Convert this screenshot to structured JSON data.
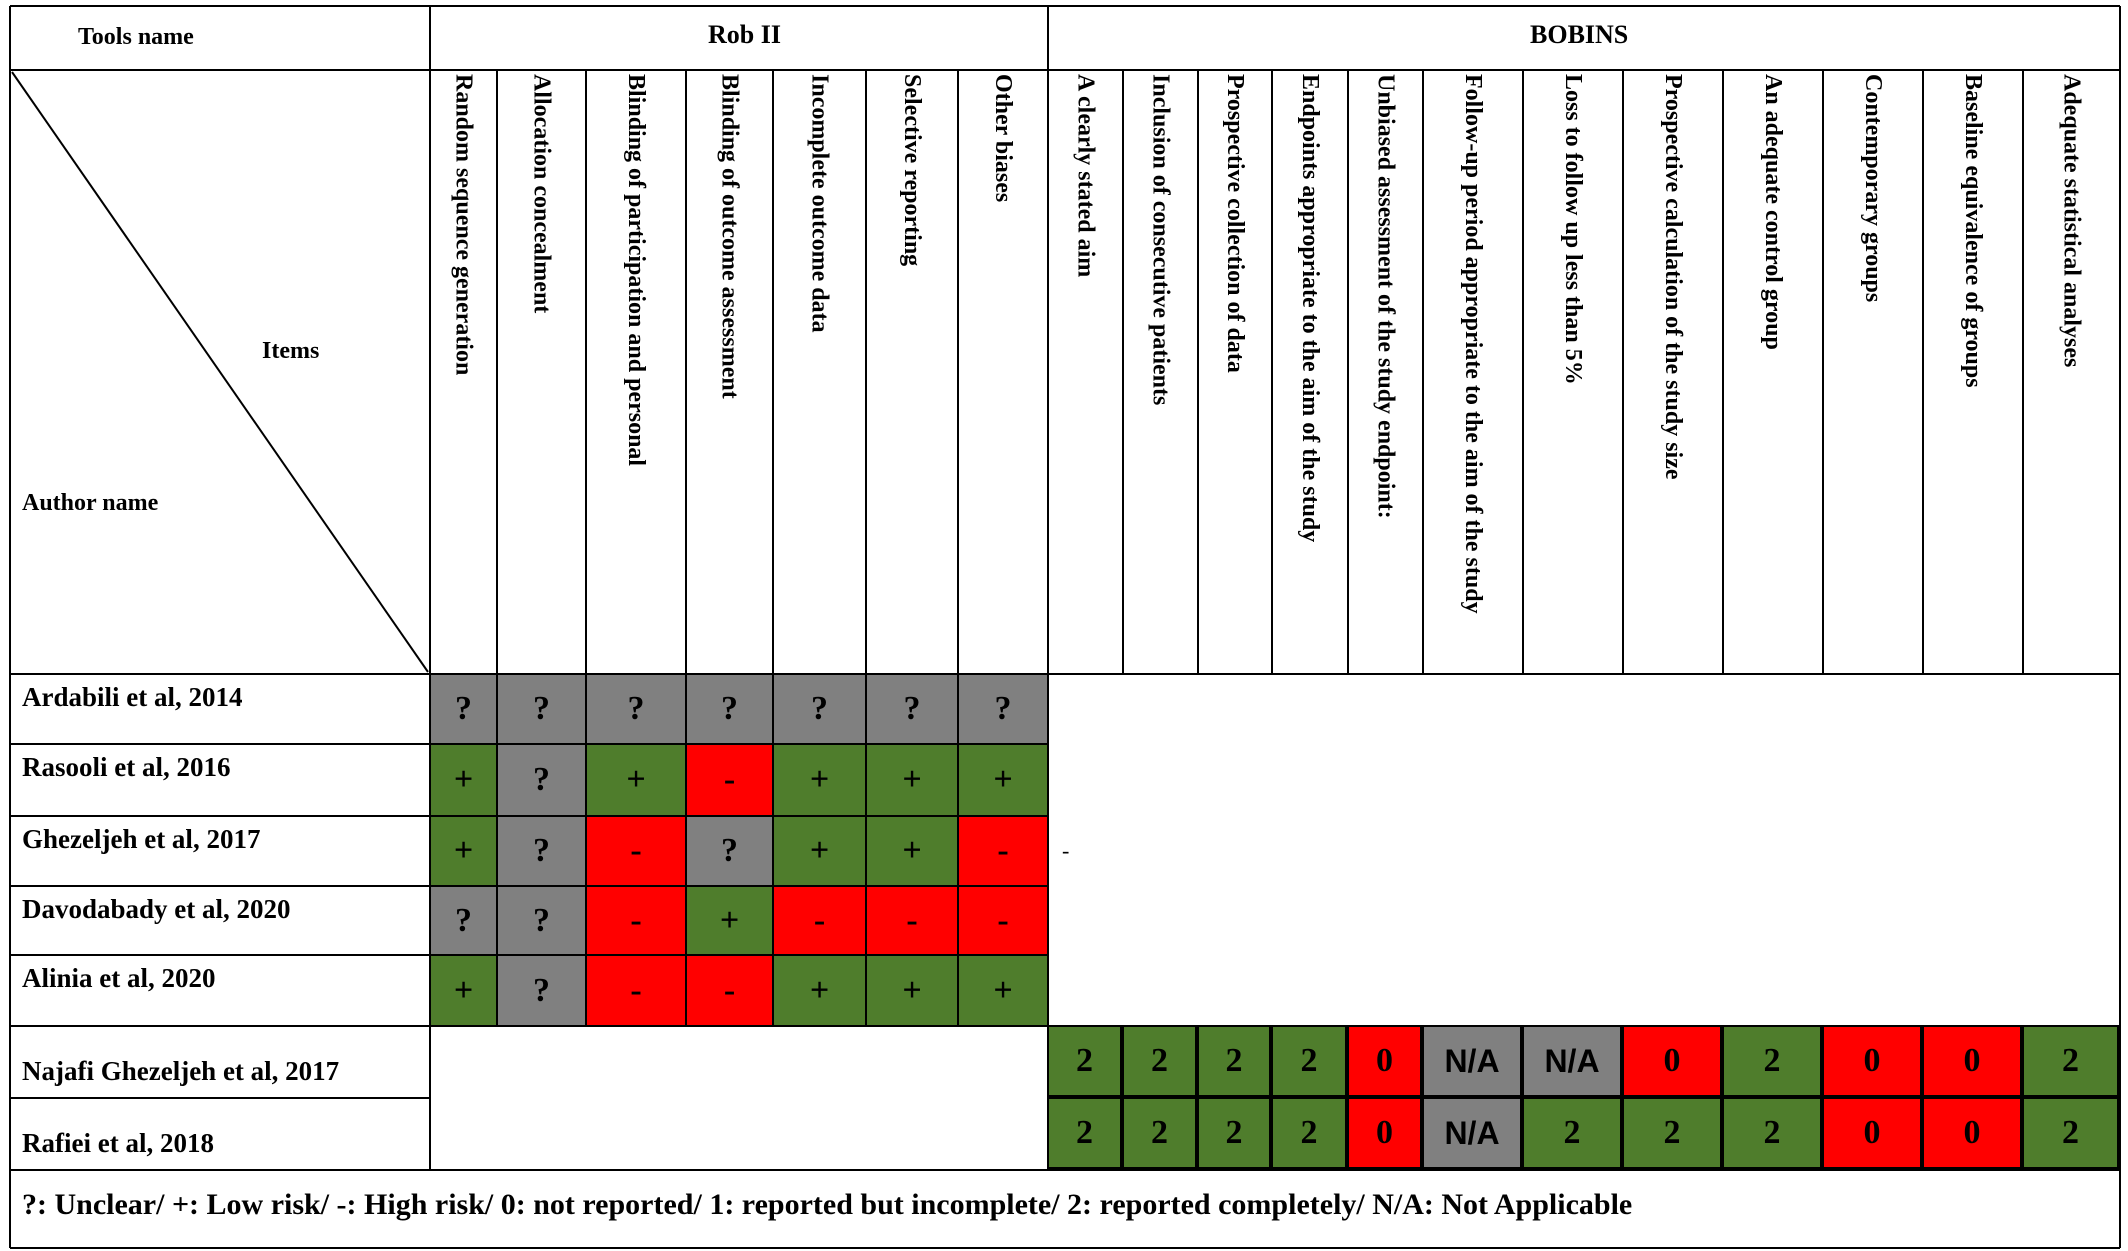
{
  "header": {
    "tools_name": "Tools name",
    "items": "Items",
    "author_name": "Author name",
    "groups": [
      {
        "key": "rob",
        "label": "Rob II"
      },
      {
        "key": "bobins",
        "label": "BOBINS"
      }
    ]
  },
  "columns": [
    "Random sequence generation",
    "Allocation concealment",
    "Blinding of participation and personal",
    "Blinding of outcome assessment",
    "Incomplete outcome data",
    "Selective reporting",
    "Other biases",
    "A clearly stated aim",
    "Inclusion of consecutive patients",
    "Prospective collection of data",
    "Endpoints appropriate to the aim of the study",
    "Unbiased assessment of the study endpoint:",
    "Follow-up period appropriate to the aim of the study",
    "Loss to follow up less than 5%",
    "Prospective calculation of the study size",
    "An adequate control group",
    "Contemporary groups",
    "Baseline equivalence of groups",
    "Adequate statistical analyses"
  ],
  "rob_rows": [
    {
      "author": "Ardabili et al,  2014",
      "cells": [
        "?",
        "?",
        "?",
        "?",
        "?",
        "?",
        "?"
      ]
    },
    {
      "author": "Rasooli et al,  2016",
      "cells": [
        "+",
        "?",
        "+",
        "-",
        "+",
        "+",
        "+"
      ]
    },
    {
      "author": "Ghezeljeh et al,  2017",
      "cells": [
        "+",
        "?",
        "-",
        "?",
        "+",
        "+",
        "-"
      ]
    },
    {
      "author": "Davodabady et al, 2020",
      "cells": [
        "?",
        "?",
        "-",
        "+",
        "-",
        "-",
        "-"
      ]
    },
    {
      "author": "Alinia et al, 2020",
      "cells": [
        "+",
        "?",
        "-",
        "-",
        "+",
        "+",
        "+"
      ]
    }
  ],
  "bobins_rows": [
    {
      "author": "Najafi Ghezeljeh et al, 2017",
      "cells": [
        "2",
        "2",
        "2",
        "2",
        "0",
        "N/A",
        "N/A",
        "0",
        "2",
        "0",
        "0",
        "2"
      ]
    },
    {
      "author": "Rafiei et al, 2018",
      "cells": [
        "2",
        "2",
        "2",
        "2",
        "0",
        "N/A",
        "2",
        "2",
        "2",
        "0",
        "0",
        "2"
      ]
    }
  ],
  "stray_mark": "-",
  "legend": "?: Unclear/ +: Low risk/ -: High risk/ 0:  not reported/ 1:  reported but incomplete/ 2:  reported completely/ N/A: Not Applicable",
  "colors": {
    "low_risk": "#4f7d2c",
    "high_risk": "#ff0000",
    "unclear": "#808080",
    "reported_completely": "#4f7d2c",
    "not_reported": "#ff0000",
    "not_applicable": "#808080"
  }
}
